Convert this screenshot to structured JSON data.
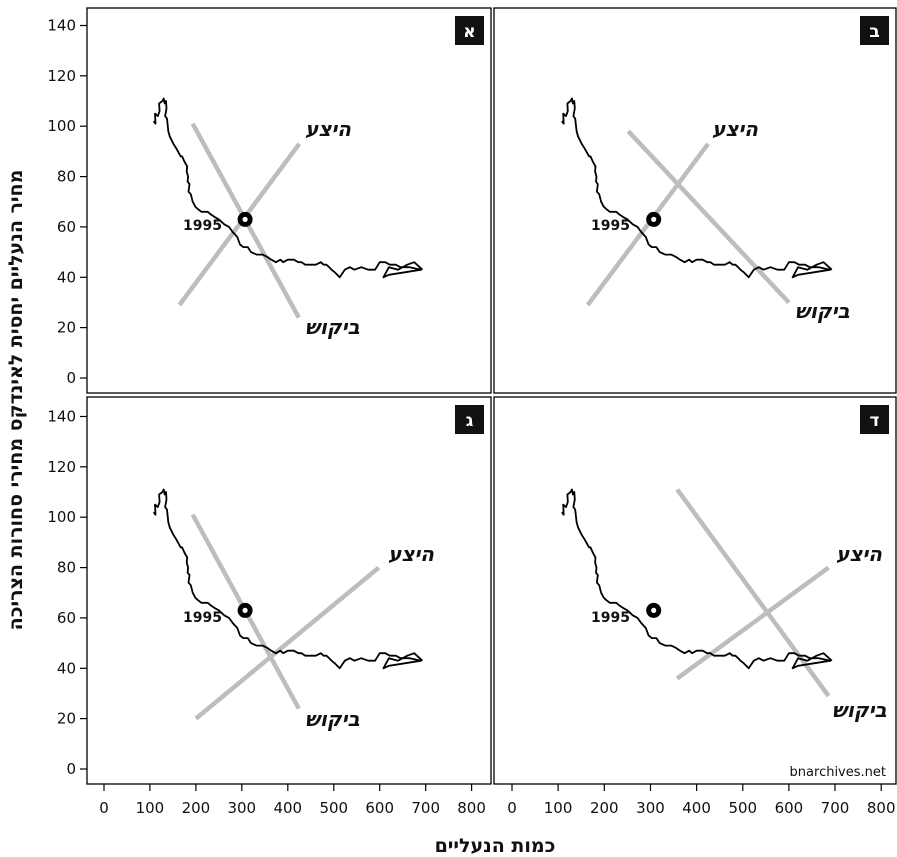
{
  "chart_data": {
    "type": "line",
    "layout": "2x2 facets",
    "ylabel": "מחיר הנעליים יחסית לאינדקס מחירי סחורות הצריכה",
    "xlabel": "כמות הנעליים",
    "xlim": [
      0,
      800
    ],
    "ylim": [
      0,
      140
    ],
    "x_ticks": [
      "0",
      "100",
      "200",
      "300",
      "400",
      "500",
      "600",
      "700",
      "800"
    ],
    "y_ticks": [
      "0",
      "20",
      "40",
      "60",
      "80",
      "100",
      "120",
      "140"
    ],
    "grid": false,
    "watermark": "bnarchives.net",
    "historical_path": {
      "color": "#000000",
      "points": [
        [
          108,
          102
        ],
        [
          112,
          101
        ],
        [
          111,
          105
        ],
        [
          117,
          104
        ],
        [
          121,
          106
        ],
        [
          120,
          109
        ],
        [
          127,
          110
        ],
        [
          130,
          111
        ],
        [
          132,
          109
        ],
        [
          135,
          110
        ],
        [
          136,
          107
        ],
        [
          133,
          104
        ],
        [
          137,
          103
        ],
        [
          140,
          98
        ],
        [
          143,
          96
        ],
        [
          151,
          93
        ],
        [
          158,
          91
        ],
        [
          167,
          88
        ],
        [
          170,
          88
        ],
        [
          175,
          86
        ],
        [
          178,
          85
        ],
        [
          181,
          84
        ],
        [
          180,
          82
        ],
        [
          183,
          80
        ],
        [
          182,
          78
        ],
        [
          186,
          77
        ],
        [
          184,
          74
        ],
        [
          189,
          73
        ],
        [
          193,
          70
        ],
        [
          199,
          68
        ],
        [
          205,
          67
        ],
        [
          212,
          66
        ],
        [
          220,
          66
        ],
        [
          226,
          66
        ],
        [
          232,
          65
        ],
        [
          240,
          64
        ],
        [
          250,
          63
        ],
        [
          262,
          61
        ],
        [
          272,
          60
        ],
        [
          280,
          58
        ],
        [
          290,
          56
        ],
        [
          296,
          53
        ],
        [
          303,
          52
        ],
        [
          313,
          52
        ],
        [
          320,
          50
        ],
        [
          332,
          49
        ],
        [
          345,
          49
        ],
        [
          356,
          48
        ],
        [
          364,
          47
        ],
        [
          374,
          46
        ],
        [
          384,
          47
        ],
        [
          390,
          46
        ],
        [
          400,
          47
        ],
        [
          413,
          47
        ],
        [
          423,
          46
        ],
        [
          430,
          46
        ],
        [
          438,
          45
        ],
        [
          450,
          45
        ],
        [
          461,
          45
        ],
        [
          472,
          46
        ],
        [
          478,
          45
        ],
        [
          484,
          45
        ],
        [
          490,
          44
        ],
        [
          495,
          43
        ],
        [
          502,
          42
        ],
        [
          513,
          40
        ],
        [
          524,
          43
        ],
        [
          535,
          44
        ],
        [
          545,
          43
        ],
        [
          560,
          44
        ],
        [
          575,
          43
        ],
        [
          590,
          43
        ],
        [
          600,
          46
        ],
        [
          612,
          46
        ],
        [
          622,
          45
        ],
        [
          635,
          45
        ],
        [
          645,
          44
        ],
        [
          665,
          44
        ],
        [
          690,
          43
        ],
        [
          620,
          41
        ],
        [
          608,
          40
        ],
        [
          620,
          44
        ],
        [
          640,
          43
        ],
        [
          660,
          45
        ],
        [
          675,
          46
        ],
        [
          693,
          43
        ]
      ]
    },
    "marker": {
      "label": "1995",
      "x": 307,
      "y": 63
    },
    "facets": [
      {
        "badge": "א",
        "supply": {
          "label": "היצע",
          "x": [
            164,
            425
          ],
          "y": [
            29,
            93
          ]
        },
        "demand": {
          "label": "ביקוש",
          "x": [
            193,
            424
          ],
          "y": [
            101,
            24
          ]
        }
      },
      {
        "badge": "ב",
        "supply": {
          "label": "היצע",
          "x": [
            164,
            425
          ],
          "y": [
            29,
            93
          ]
        },
        "demand": {
          "label": "ביקוש",
          "x": [
            252,
            600
          ],
          "y": [
            98,
            30
          ]
        }
      },
      {
        "badge": "ג",
        "supply": {
          "label": "היצע",
          "x": [
            200,
            598
          ],
          "y": [
            20,
            80
          ]
        },
        "demand": {
          "label": "ביקוש",
          "x": [
            193,
            424
          ],
          "y": [
            101,
            24
          ]
        }
      },
      {
        "badge": "ד",
        "supply": {
          "label": "היצע",
          "x": [
            358,
            686
          ],
          "y": [
            36,
            80
          ]
        },
        "demand": {
          "label": "ביקוש",
          "x": [
            358,
            686
          ],
          "y": [
            111,
            29
          ]
        }
      }
    ],
    "line_color": "#bdbdbd"
  }
}
